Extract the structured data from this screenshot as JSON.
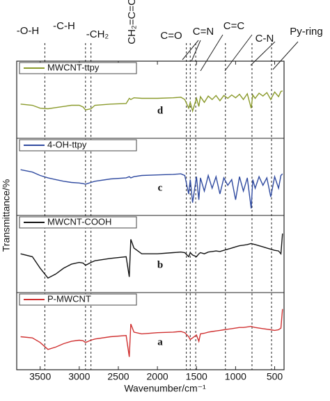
{
  "chart_data": {
    "type": "line",
    "stacked_panels": true,
    "x": [
      3750,
      3600,
      3500,
      3400,
      3300,
      3200,
      3100,
      3000,
      2950,
      2920,
      2850,
      2800,
      2600,
      2400,
      2360,
      2340,
      2300,
      2200,
      2000,
      1800,
      1700,
      1650,
      1600,
      1580,
      1550,
      1500,
      1470,
      1450,
      1400,
      1350,
      1300,
      1250,
      1200,
      1150,
      1100,
      1050,
      1000,
      950,
      900,
      850,
      800,
      780,
      750,
      700,
      650,
      600,
      550,
      500,
      450,
      420,
      400
    ],
    "series": [
      {
        "name": "MWCNT-ttpy",
        "label": "d",
        "color": "#8a9a2a",
        "values": [
          52,
          50,
          45,
          44,
          46,
          48,
          50,
          50,
          47,
          42,
          44,
          50,
          52,
          53,
          62,
          60,
          63,
          62,
          62,
          63,
          64,
          60,
          45,
          55,
          40,
          62,
          48,
          65,
          55,
          66,
          60,
          67,
          58,
          67,
          62,
          68,
          63,
          69,
          60,
          70,
          45,
          68,
          62,
          71,
          66,
          72,
          60,
          73,
          65,
          74,
          75
        ]
      },
      {
        "name": "4-OH-ttpy",
        "label": "c",
        "color": "#2f4aa0",
        "values": [
          72,
          68,
          62,
          58,
          55,
          52,
          50,
          49,
          48,
          47,
          50,
          52,
          56,
          58,
          60,
          58,
          60,
          62,
          63,
          64,
          65,
          62,
          30,
          55,
          15,
          60,
          20,
          58,
          35,
          62,
          40,
          60,
          30,
          58,
          45,
          55,
          20,
          60,
          35,
          58,
          5,
          55,
          40,
          60,
          45,
          58,
          25,
          60,
          40,
          62,
          65
        ]
      },
      {
        "name": "MWCNT-COOH",
        "label": "b",
        "color": "#111111",
        "values": [
          60,
          55,
          35,
          18,
          25,
          35,
          42,
          45,
          44,
          40,
          45,
          48,
          52,
          55,
          20,
          85,
          70,
          60,
          60,
          62,
          63,
          62,
          55,
          62,
          58,
          55,
          60,
          62,
          60,
          63,
          64,
          65,
          64,
          66,
          68,
          70,
          72,
          74,
          75,
          76,
          78,
          77,
          76,
          74,
          72,
          70,
          68,
          66,
          65,
          60,
          95
        ]
      },
      {
        "name": "P-MWCNT",
        "label": "a",
        "color": "#d03030",
        "values": [
          50,
          48,
          40,
          28,
          32,
          38,
          42,
          44,
          43,
          40,
          44,
          46,
          50,
          52,
          15,
          72,
          58,
          55,
          57,
          58,
          59,
          57,
          50,
          45,
          48,
          53,
          42,
          55,
          56,
          58,
          59,
          60,
          61,
          62,
          63,
          64,
          65,
          66,
          66,
          67,
          68,
          67,
          66,
          65,
          64,
          63,
          62,
          61,
          62,
          65,
          98
        ]
      }
    ],
    "ylim": [
      0,
      100
    ],
    "xlim": [
      3800,
      380
    ],
    "xticks": [
      3500,
      3000,
      2500,
      2000,
      1500,
      1000,
      500
    ],
    "xlabel": "Wavenumber/cm⁻¹",
    "ylabel": "Transmittance/%",
    "annotations": [
      "-O-H",
      "-C-H",
      "-CH₂",
      "CH₂=C=O",
      "C=O",
      "C=N",
      "C=C",
      "C-N",
      "Py-ring"
    ],
    "reference_lines": [
      3440,
      2920,
      2850,
      1630,
      1580,
      1510,
      1130,
      790,
      540
    ]
  }
}
